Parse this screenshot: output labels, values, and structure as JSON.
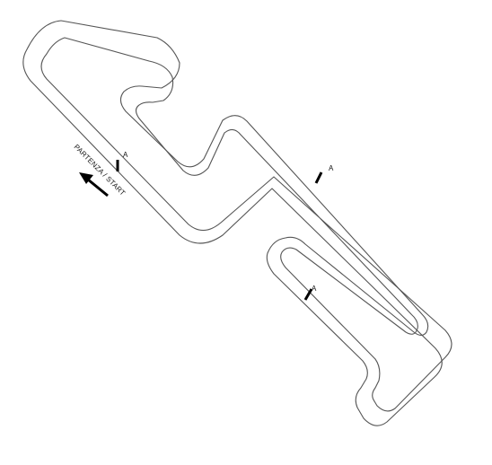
{
  "start_label": "PARTENZA / START",
  "sector_markers": [
    {
      "label": "A"
    },
    {
      "label": "A"
    },
    {
      "label": "A"
    }
  ],
  "colors": {
    "background": "#ffffff",
    "track_line": "#555555",
    "marker": "#000000"
  },
  "icons": {
    "direction": "arrow-left-up-icon"
  }
}
